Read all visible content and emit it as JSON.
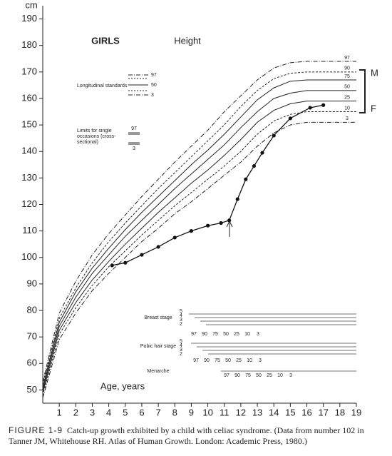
{
  "chart_data": {
    "type": "line",
    "title": "GIRLS",
    "subtitle": "Height",
    "y_label": "cm",
    "x_label": "Age, years",
    "xlim": [
      0,
      19
    ],
    "ylim": [
      45,
      195
    ],
    "xticks": [
      1,
      2,
      3,
      4,
      5,
      6,
      7,
      8,
      9,
      10,
      11,
      12,
      13,
      14,
      15,
      16,
      17,
      18,
      19
    ],
    "yticks": [
      50,
      60,
      70,
      80,
      90,
      100,
      110,
      120,
      130,
      140,
      150,
      160,
      170,
      180,
      190
    ],
    "x": [
      0,
      1,
      2,
      3,
      4,
      5,
      6,
      7,
      8,
      9,
      10,
      11,
      12,
      13,
      14,
      15,
      16,
      17,
      18,
      19
    ],
    "series": [
      {
        "name": "97",
        "color": "#222222",
        "style": "dashdot",
        "values": [
          53,
          79,
          91,
          101,
          109,
          116,
          123,
          129.5,
          136,
          142,
          148,
          155,
          161,
          167,
          171.5,
          173.5,
          174,
          174,
          174,
          174
        ]
      },
      {
        "name": "90",
        "color": "#222222",
        "style": "dashed",
        "values": [
          52,
          77,
          88.5,
          98,
          106,
          113,
          119.5,
          126,
          132,
          138,
          144,
          150,
          157,
          163,
          167.5,
          169.5,
          170,
          170,
          170,
          170
        ]
      },
      {
        "name": "75",
        "color": "#222222",
        "style": "solid",
        "values": [
          51,
          75.5,
          87,
          96,
          103.5,
          110.5,
          117,
          123,
          129,
          135,
          140.5,
          146.5,
          153,
          159.5,
          164,
          166.5,
          167,
          167,
          167,
          167
        ]
      },
      {
        "name": "50",
        "color": "#222222",
        "style": "solid",
        "values": [
          50,
          74,
          85,
          94,
          101,
          108,
          114,
          120,
          126,
          131.5,
          137,
          142.5,
          149,
          155,
          160,
          162,
          163,
          163,
          163,
          163
        ]
      },
      {
        "name": "25",
        "color": "#222222",
        "style": "solid",
        "values": [
          49,
          72.5,
          83,
          91.5,
          98.5,
          105,
          111,
          117,
          122.5,
          128,
          133,
          138.5,
          144.5,
          151,
          155.5,
          158,
          159,
          159,
          159,
          159
        ]
      },
      {
        "name": "10",
        "color": "#222222",
        "style": "dashed",
        "values": [
          48,
          71,
          81,
          89.5,
          96.5,
          102.5,
          108.5,
          114,
          119.5,
          124.5,
          129.5,
          134.5,
          140,
          146.5,
          151.5,
          154,
          155,
          155,
          155,
          155
        ]
      },
      {
        "name": "3",
        "color": "#222222",
        "style": "dashdot",
        "values": [
          47,
          69,
          79,
          87.5,
          94,
          100,
          106,
          111,
          116.5,
          121,
          126,
          131,
          136,
          142,
          147,
          150,
          151,
          151,
          151,
          151
        ]
      }
    ],
    "child": {
      "color": "#111111",
      "x": [
        4.2,
        5,
        6,
        7,
        8,
        9,
        10,
        10.8,
        11.3,
        11.8,
        12.3,
        12.8,
        13.3,
        14,
        15,
        16.2,
        17
      ],
      "values": [
        97,
        98,
        101,
        104,
        107.5,
        110,
        112,
        113,
        114,
        122,
        129.5,
        134.5,
        139.5,
        146,
        152.5,
        156.5,
        157.5
      ]
    },
    "legend": {
      "longitudinal": "Longitudinal standards",
      "longitudinal_keys": [
        "97",
        "50",
        "3"
      ],
      "cross": "Limits for single occasions (cross-sectional)",
      "cross_keys": [
        "97",
        "3"
      ]
    },
    "bracket": [
      "M",
      "F"
    ],
    "puberty": [
      {
        "label": "Breast stage",
        "stages": [
          "5",
          "4",
          "3",
          "2"
        ],
        "percentiles": [
          "97",
          "90",
          "75",
          "50",
          "25",
          "10",
          "3"
        ]
      },
      {
        "label": "Pubic hair stage",
        "stages": [
          "5",
          "4",
          "3",
          "2"
        ],
        "percentiles": [
          "97",
          "90",
          "75",
          "50",
          "25",
          "10",
          "3"
        ]
      },
      {
        "label": "Menarche",
        "stages": [],
        "percentiles": [
          "97",
          "90",
          "75",
          "50",
          "25",
          "10",
          "3"
        ]
      }
    ]
  },
  "caption": {
    "label": "FIGURE 1-9",
    "text": "Catch-up growth exhibited by a child with celiac syndrome. (Data from number 102 in Tanner JM, Whitehouse RH. Atlas of Human Growth. London: Academic Press, 1980.)"
  }
}
